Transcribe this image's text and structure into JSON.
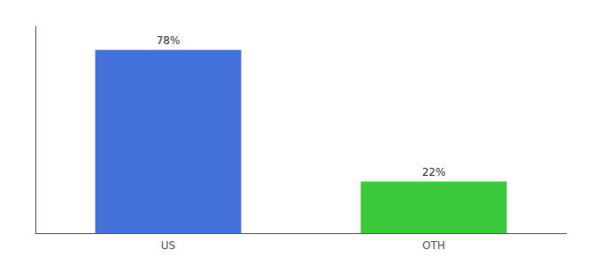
{
  "chart_data": {
    "type": "bar",
    "categories": [
      "US",
      "OTH"
    ],
    "values": [
      78,
      22
    ],
    "value_labels": [
      "78%",
      "22%"
    ],
    "colors": [
      "#4472db",
      "#3cc93c"
    ],
    "ylim": [
      0,
      88
    ],
    "yticks": [],
    "grid": false,
    "data_labels": true,
    "tick_labels": "x"
  }
}
